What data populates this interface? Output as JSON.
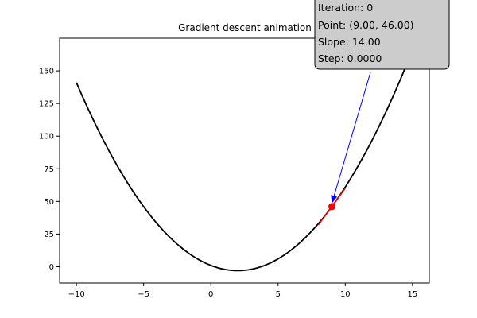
{
  "chart_data": {
    "type": "line",
    "title": "Gradient descent animation",
    "xlim": [
      -11.25,
      16.25
    ],
    "ylim": [
      -12.5,
      175
    ],
    "x_ticks": [
      -10,
      -5,
      0,
      5,
      10,
      15
    ],
    "y_ticks": [
      0,
      25,
      50,
      75,
      100,
      125,
      150
    ],
    "grid": false,
    "curve": {
      "x_range": [
        -10,
        15
      ],
      "y": "(x-2)^2 - 3",
      "color": "#000000"
    },
    "point": {
      "x": 9,
      "y": 46,
      "color": "#ff0000"
    },
    "tangent": {
      "slope": 14,
      "x_range": [
        8,
        10
      ],
      "color": "#ff0000"
    },
    "info_box": {
      "iteration": "Iteration: 0",
      "point": "Point: (9.00, 46.00)",
      "slope": "Slope: 14.00",
      "step": "Step: 0.0000",
      "arrow_color": "#0000ff"
    }
  }
}
